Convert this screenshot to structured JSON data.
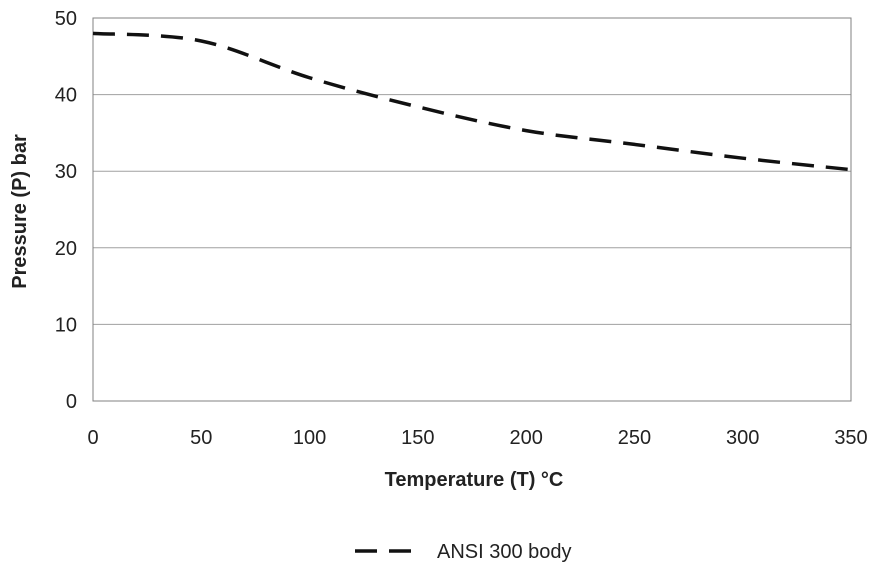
{
  "chart_data": {
    "type": "line",
    "title": "",
    "xlabel": "Temperature (T) °C",
    "ylabel": "Pressure (P) bar",
    "xlim": [
      0,
      350
    ],
    "ylim": [
      0,
      50
    ],
    "xticks": [
      0,
      50,
      100,
      150,
      200,
      250,
      300,
      350
    ],
    "yticks": [
      0,
      10,
      20,
      30,
      40,
      50
    ],
    "grid": "horizontal",
    "legend_position": "bottom",
    "series": [
      {
        "name": "ANSI 300 body",
        "line_style": "dashed",
        "color": "#111111",
        "x": [
          0,
          50,
          100,
          150,
          200,
          250,
          300,
          350
        ],
        "y": [
          48,
          47,
          42.2,
          38.4,
          35.3,
          33.5,
          31.7,
          30.2
        ]
      }
    ]
  }
}
